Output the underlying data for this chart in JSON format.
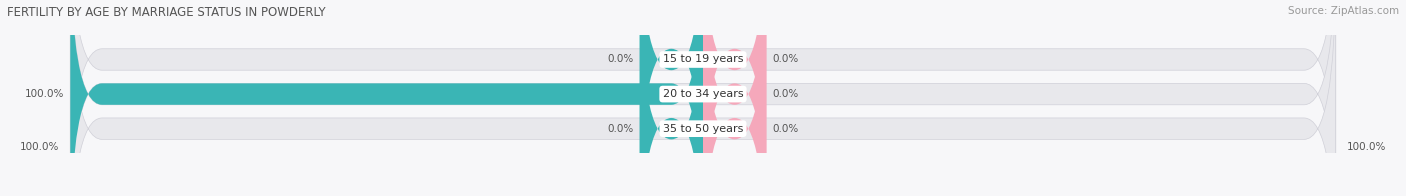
{
  "title": "FERTILITY BY AGE BY MARRIAGE STATUS IN POWDERLY",
  "source": "Source: ZipAtlas.com",
  "categories": [
    "15 to 19 years",
    "20 to 34 years",
    "35 to 50 years"
  ],
  "married_values": [
    0.0,
    100.0,
    0.0
  ],
  "unmarried_values": [
    0.0,
    0.0,
    0.0
  ],
  "married_color": "#3ab5b5",
  "unmarried_color": "#f5a8bb",
  "bar_bg_color": "#e8e8ec",
  "bar_border_color": "#d0d0d8",
  "background_color": "#f7f7f9",
  "title_fontsize": 8.5,
  "source_fontsize": 7.5,
  "label_fontsize": 7.5,
  "category_fontsize": 8,
  "legend_fontsize": 8,
  "left_axis_label": "100.0%",
  "right_axis_label": "100.0%"
}
